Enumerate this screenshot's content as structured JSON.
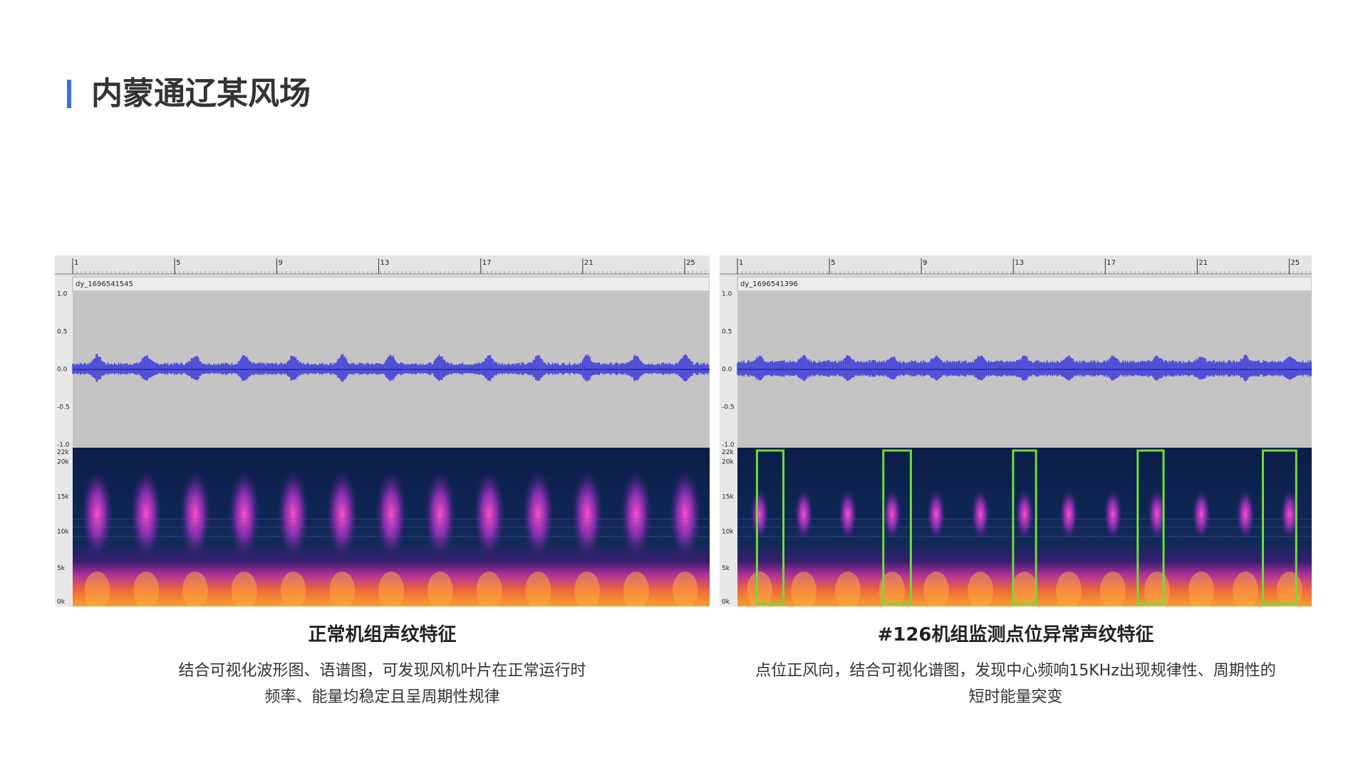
{
  "header": {
    "title": "内蒙通辽某风场"
  },
  "panels": [
    {
      "ruler": [
        "1",
        "5",
        "9",
        "13",
        "17",
        "21",
        "25"
      ],
      "track": "dy_1696541545",
      "amplitude_ticks": [
        "1.0",
        "0.5",
        "0.0",
        "-0.5",
        "-1.0"
      ],
      "frequency_ticks": [
        "22k",
        "20k",
        "15k",
        "10k",
        "5k",
        "0k"
      ],
      "caption": "正常机组声纹特征",
      "description": [
        "结合可视化波形图、语谱图，可发现风机叶片在正常运行时",
        "频率、能量均稳定且呈周期性规律"
      ]
    },
    {
      "ruler": [
        "1",
        "5",
        "9",
        "13",
        "17",
        "21",
        "25"
      ],
      "track": "dy_1696541396",
      "amplitude_ticks": [
        "1.0",
        "0.5",
        "0.0",
        "-0.5",
        "-1.0"
      ],
      "frequency_ticks": [
        "22k",
        "20k",
        "15k",
        "10k",
        "5k",
        "0k"
      ],
      "caption": "#126机组监测点位异常声纹特征",
      "description": [
        "点位正风向，结合可视化谱图，发现中心频响15KHz出现规律性、周期性的",
        "短时能量突变"
      ]
    }
  ]
}
